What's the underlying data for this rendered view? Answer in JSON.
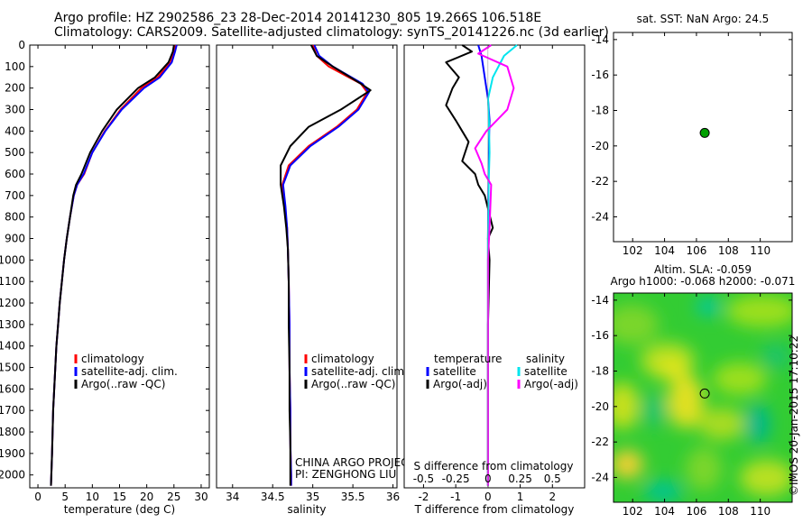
{
  "header": {
    "title1": "Argo profile: HZ 2902586_23 28-Dec-2014 20141230_805 19.266S 106.518E",
    "title2": "Climatology: CARS2009. Satellite-adjusted climatology: synTS_20141226.nc (3d earlier)"
  },
  "stamp": "©IMOS 20-Jan-2015 17:10:22",
  "colors": {
    "climatology": "#ff0000",
    "satellite": "#0000ff",
    "argo": "#000000",
    "sal_satellite": "#00e5ee",
    "sal_argo": "#ff00ff",
    "marker": "#00a000"
  },
  "chart_data": [
    {
      "type": "line",
      "name": "temperature-profile",
      "xlabel": "temperature (deg C)",
      "ylabel": "",
      "xlim": [
        -1.5,
        31.5
      ],
      "ylim": [
        2060,
        0
      ],
      "xticks": [
        0,
        5,
        10,
        15,
        20,
        25,
        30
      ],
      "yticks": [
        0,
        100,
        200,
        300,
        400,
        500,
        600,
        700,
        800,
        900,
        1000,
        1100,
        1200,
        1300,
        1400,
        1500,
        1600,
        1700,
        1800,
        1900,
        2000
      ],
      "legend": [
        "climatology",
        "satellite-adj. clim.",
        "Argo(..raw -QC)"
      ],
      "series": [
        {
          "name": "climatology",
          "color": "#ff0000",
          "x": [
            25.3,
            25.0,
            24.4,
            22.0,
            19.0,
            15.2,
            12.3,
            10.0,
            8.5,
            7.2,
            6.6,
            5.9,
            5.3,
            4.8,
            4.4,
            4.0,
            3.7,
            3.4,
            3.2,
            3.0,
            2.8,
            2.6,
            2.4
          ],
          "y": [
            0,
            30,
            80,
            150,
            200,
            300,
            400,
            500,
            600,
            650,
            700,
            800,
            900,
            1000,
            1100,
            1200,
            1300,
            1400,
            1500,
            1600,
            1700,
            1900,
            2050
          ]
        },
        {
          "name": "satellite-adj. clim.",
          "color": "#0000ff",
          "x": [
            25.5,
            25.2,
            24.6,
            22.4,
            19.5,
            15.4,
            12.4,
            10.0,
            8.4,
            7.2,
            6.6,
            5.9,
            5.3,
            4.8,
            4.4,
            4.0,
            3.7,
            3.4,
            3.2,
            3.0,
            2.8,
            2.6,
            2.4
          ],
          "y": [
            0,
            30,
            80,
            150,
            200,
            300,
            400,
            500,
            600,
            650,
            700,
            800,
            900,
            1000,
            1100,
            1200,
            1300,
            1400,
            1500,
            1600,
            1700,
            1900,
            2050
          ]
        },
        {
          "name": "Argo(..raw -QC)",
          "color": "#000000",
          "x": [
            25.0,
            24.8,
            24.0,
            21.5,
            18.4,
            14.5,
            11.8,
            9.6,
            8.0,
            7.0,
            6.5,
            5.9,
            5.3,
            4.8,
            4.4,
            4.0,
            3.7,
            3.4,
            3.2,
            3.0,
            2.8,
            2.6,
            2.4
          ],
          "y": [
            0,
            30,
            80,
            150,
            200,
            300,
            400,
            500,
            600,
            650,
            700,
            800,
            900,
            1000,
            1100,
            1200,
            1300,
            1400,
            1500,
            1600,
            1700,
            1900,
            2050
          ]
        }
      ]
    },
    {
      "type": "line",
      "name": "salinity-profile",
      "xlabel": "salinity",
      "ylabel": "",
      "xlim": [
        33.8,
        36.05
      ],
      "ylim": [
        2060,
        0
      ],
      "xticks": [
        34,
        34.5,
        35,
        35.5,
        36
      ],
      "legend": [
        "climatology",
        "satellite-adj. clim.",
        "Argo(..raw -QC)"
      ],
      "annotation": [
        "CHINA ARGO PROJECT",
        "PI: ZENGHONG LIU"
      ],
      "series": [
        {
          "name": "climatology",
          "color": "#ff0000",
          "x": [
            35.0,
            35.05,
            35.2,
            35.6,
            35.68,
            35.55,
            35.3,
            34.95,
            34.7,
            34.62,
            34.65,
            34.68,
            34.69,
            34.7,
            34.71,
            34.71,
            34.72,
            34.72,
            34.73,
            34.73
          ],
          "y": [
            0,
            50,
            100,
            180,
            220,
            300,
            380,
            470,
            560,
            650,
            750,
            850,
            950,
            1100,
            1300,
            1500,
            1700,
            1850,
            2000,
            2050
          ]
        },
        {
          "name": "satellite-adj. clim.",
          "color": "#0000ff",
          "x": [
            35.02,
            35.08,
            35.25,
            35.62,
            35.7,
            35.57,
            35.32,
            34.97,
            34.72,
            34.63,
            34.66,
            34.68,
            34.69,
            34.7,
            34.71,
            34.71,
            34.72,
            34.72,
            34.73,
            34.73
          ],
          "y": [
            0,
            50,
            100,
            180,
            220,
            300,
            380,
            470,
            560,
            650,
            750,
            850,
            950,
            1100,
            1300,
            1500,
            1700,
            1850,
            2000,
            2050
          ]
        },
        {
          "name": "Argo(..raw -QC)",
          "color": "#000000",
          "x": [
            34.98,
            35.05,
            35.25,
            35.6,
            35.72,
            35.35,
            34.95,
            34.72,
            34.6,
            34.6,
            34.64,
            34.67,
            34.69,
            34.7,
            34.7,
            34.71,
            34.71,
            34.72,
            34.72,
            34.72
          ],
          "y": [
            0,
            50,
            100,
            180,
            210,
            300,
            380,
            470,
            560,
            650,
            750,
            850,
            950,
            1100,
            1300,
            1500,
            1700,
            1850,
            2000,
            2050
          ]
        }
      ]
    },
    {
      "type": "line",
      "name": "difference-profile",
      "xlabel": "T difference from climatology",
      "xlabel2": "S difference from climatology",
      "xlim": [
        -2.6,
        3.0
      ],
      "ylim": [
        2060,
        0
      ],
      "xticks": [
        -2,
        -1,
        0,
        1,
        2
      ],
      "xticks_s": [
        -0.5,
        -0.25,
        0,
        0.25,
        0.5
      ],
      "xticklabels_s": [
        "-0.5",
        "-0.25",
        "0",
        "0.25",
        "0.5"
      ],
      "legend_titles": [
        "temperature",
        "salinity"
      ],
      "legend": [
        "satellite",
        "Argo(-adj)",
        "satellite",
        "Argo(-adj)"
      ],
      "series": [
        {
          "name": "satellite",
          "color": "#0000ff",
          "x": [
            -0.3,
            -0.2,
            -0.1,
            0.0,
            0.05,
            0.03,
            0.02,
            0.01,
            0.0,
            0.0,
            0.0,
            0.0,
            0.0
          ],
          "y": [
            0,
            50,
            150,
            250,
            350,
            450,
            550,
            700,
            900,
            1200,
            1500,
            1800,
            2050
          ]
        },
        {
          "name": "Argo(-adj)",
          "color": "#000000",
          "x": [
            -0.8,
            -0.5,
            -1.3,
            -0.9,
            -1.1,
            -1.3,
            -1.0,
            -0.6,
            -0.8,
            -0.4,
            -0.3,
            -0.1,
            0.15,
            0.0,
            0.05,
            0.0,
            0.0,
            0.0
          ],
          "y": [
            0,
            30,
            80,
            150,
            200,
            280,
            350,
            450,
            540,
            600,
            650,
            700,
            850,
            900,
            1000,
            1300,
            1700,
            2050
          ]
        },
        {
          "name": "satellite",
          "color": "#00e5ee",
          "x": [
            0.9,
            0.5,
            0.15,
            0.0,
            0.03,
            0.05,
            0.02,
            0.0,
            0.0,
            0.0,
            0.0
          ],
          "y": [
            0,
            50,
            150,
            250,
            350,
            500,
            650,
            900,
            1200,
            1600,
            2050
          ]
        },
        {
          "name": "Argo(-adj)",
          "color": "#ff00ff",
          "x": [
            0.1,
            -0.3,
            0.6,
            0.8,
            0.6,
            -0.05,
            -0.4,
            -0.2,
            -0.1,
            0.1,
            0.05,
            0.0,
            0.0,
            0.0
          ],
          "y": [
            0,
            40,
            100,
            200,
            300,
            400,
            480,
            550,
            600,
            650,
            850,
            1000,
            1500,
            2050
          ]
        }
      ]
    },
    {
      "type": "scatter",
      "name": "sst-map",
      "title": "sat. SST: NaN Argo: 24.5",
      "xlim": [
        100.8,
        112.0
      ],
      "ylim": [
        -25.4,
        -13.6
      ],
      "xticks": [
        102,
        104,
        106,
        108,
        110
      ],
      "yticks": [
        -14,
        -16,
        -18,
        -20,
        -22,
        -24
      ],
      "points": [
        {
          "x": 106.518,
          "y": -19.266
        }
      ]
    },
    {
      "type": "heatmap",
      "name": "sla-map",
      "title1": "Altim. SLA: -0.059",
      "title2": "Argo h1000: -0.068 h2000: -0.071",
      "xlim": [
        100.8,
        112.0
      ],
      "ylim": [
        -25.4,
        -13.6
      ],
      "xticks": [
        102,
        104,
        106,
        108,
        110
      ],
      "yticks": [
        -14,
        -16,
        -18,
        -20,
        -22,
        -24
      ],
      "points": [
        {
          "x": 106.518,
          "y": -19.266
        }
      ]
    }
  ]
}
